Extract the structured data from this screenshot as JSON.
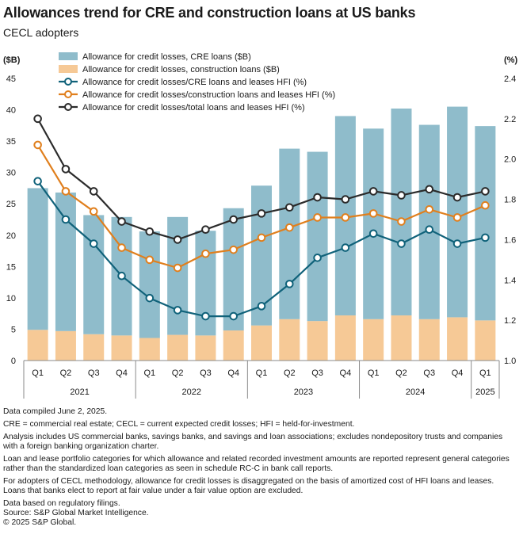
{
  "header": {
    "title": "Allowances trend for CRE and construction loans at US banks",
    "subtitle": "CECL adopters"
  },
  "colors": {
    "cre_bar": "#8fbccb",
    "construction_bar": "#f6c996",
    "cre_line": "#10627a",
    "construction_line": "#e07f1d",
    "total_line": "#2b2b2b",
    "axis": "#555555"
  },
  "chart_data": {
    "type": "bar",
    "stacked_bars": true,
    "left_axis_label": "($B)",
    "right_axis_label": "(%)",
    "left_ylim": [
      0,
      45
    ],
    "left_ticks": [
      "0",
      "5",
      "10",
      "15",
      "20",
      "25",
      "30",
      "35",
      "40",
      "45"
    ],
    "right_ylim": [
      1.0,
      2.4
    ],
    "right_ticks": [
      "1.0",
      "1.2",
      "1.4",
      "1.6",
      "1.8",
      "2.0",
      "2.2",
      "2.4"
    ],
    "categories": [
      "Q1",
      "Q2",
      "Q3",
      "Q4",
      "Q1",
      "Q2",
      "Q3",
      "Q4",
      "Q1",
      "Q2",
      "Q3",
      "Q4",
      "Q1",
      "Q2",
      "Q3",
      "Q4",
      "Q1"
    ],
    "year_groups": [
      {
        "label": "2021",
        "count": 4
      },
      {
        "label": "2022",
        "count": 4
      },
      {
        "label": "2023",
        "count": 4
      },
      {
        "label": "2024",
        "count": 4
      },
      {
        "label": "2025",
        "count": 1
      }
    ],
    "series": [
      {
        "name": "Allowance for credit losses, CRE loans ($B)",
        "type": "bar",
        "axis": "left",
        "values": [
          22.6,
          22.1,
          19.0,
          18.9,
          17.0,
          18.8,
          16.7,
          19.5,
          22.3,
          27.2,
          27.0,
          31.8,
          30.4,
          33.0,
          31.0,
          33.6,
          31.0
        ]
      },
      {
        "name": "Allowance for credit losses, construction loans ($B)",
        "type": "bar",
        "axis": "left",
        "values": [
          4.9,
          4.7,
          4.2,
          4.0,
          3.6,
          4.1,
          4.0,
          4.8,
          5.6,
          6.6,
          6.3,
          7.2,
          6.6,
          7.2,
          6.6,
          6.9,
          6.4
        ]
      },
      {
        "name": "Allowance for credit losses/CRE loans and leases HFI (%)",
        "type": "line",
        "axis": "right",
        "values": [
          1.89,
          1.7,
          1.58,
          1.42,
          1.31,
          1.25,
          1.22,
          1.22,
          1.27,
          1.38,
          1.51,
          1.56,
          1.63,
          1.58,
          1.65,
          1.58,
          1.61
        ]
      },
      {
        "name": "Allowance for credit losses/construction loans and leases HFI (%)",
        "type": "line",
        "axis": "right",
        "values": [
          2.07,
          1.84,
          1.74,
          1.56,
          1.5,
          1.46,
          1.53,
          1.55,
          1.61,
          1.66,
          1.71,
          1.71,
          1.73,
          1.69,
          1.75,
          1.71,
          1.77
        ]
      },
      {
        "name": "Allowance for credit losses/total loans and leases HFI (%)",
        "type": "line",
        "axis": "right",
        "values": [
          2.2,
          1.95,
          1.84,
          1.69,
          1.64,
          1.6,
          1.65,
          1.7,
          1.73,
          1.76,
          1.81,
          1.8,
          1.84,
          1.82,
          1.85,
          1.81,
          1.84
        ]
      }
    ]
  },
  "notes": [
    "Data compiled June 2, 2025.",
    "CRE = commercial real estate; CECL = current expected credit losses; HFI = held-for-investment.",
    "Analysis includes US commercial banks, savings banks, and savings and loan associations; excludes nondepository trusts and companies with a foreign banking organization charter.",
    "Loan and lease portfolio categories for which allowance and related recorded investment amounts are reported represent general categories rather than the standardized loan categories as seen in schedule RC-C in bank call reports.",
    "For adopters of CECL methodology, allowance for credit losses is disaggregated on the basis of amortized cost of HFI loans and leases. Loans that banks elect to report at fair value under a fair value option are excluded.",
    "Data based on regulatory filings.",
    "Source: S&P Global Market Intelligence.",
    "© 2025 S&P Global."
  ]
}
